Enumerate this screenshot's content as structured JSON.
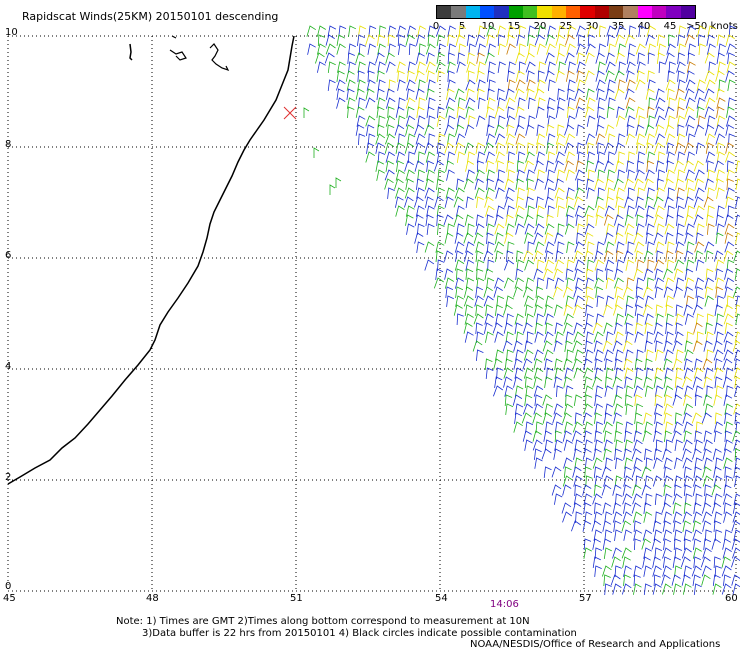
{
  "title": "Rapidscat Winds(25KM) 20150101 descending",
  "legend": {
    "colors": [
      "#3c3c3c",
      "#7a7a7a",
      "#00b4f0",
      "#0050ff",
      "#2030c0",
      "#00a000",
      "#40c020",
      "#f0e000",
      "#ffb000",
      "#ff6000",
      "#e00000",
      "#b00000",
      "#7a3c14",
      "#b08060",
      "#ff00ff",
      "#c000c0",
      "#8000c0",
      "#5000a0"
    ],
    "labels": [
      "0",
      "5",
      "10",
      "15",
      "20",
      "25",
      "30",
      "35",
      "40",
      "45",
      ">50 knots"
    ]
  },
  "axes": {
    "x_ticks": [
      "45",
      "48",
      "51",
      "54",
      "57",
      "60"
    ],
    "y_ticks": [
      "0",
      "2",
      "4",
      "6",
      "8",
      "10"
    ]
  },
  "pass_time": "14:06",
  "notes": {
    "line1": "Note: 1) Times are GMT 2)Times along bottom correspond to measurement at 10N",
    "line2": "3)Data buffer is 22 hrs from 20150101 4) Black circles indicate possible contamination",
    "line3": "NOAA/NESDIS/Office of Research and Applications"
  },
  "wind_colors": {
    "low": "#1a2fd0",
    "mid": "#20b020",
    "high": "#e8e000",
    "strong": "#c87a00"
  }
}
